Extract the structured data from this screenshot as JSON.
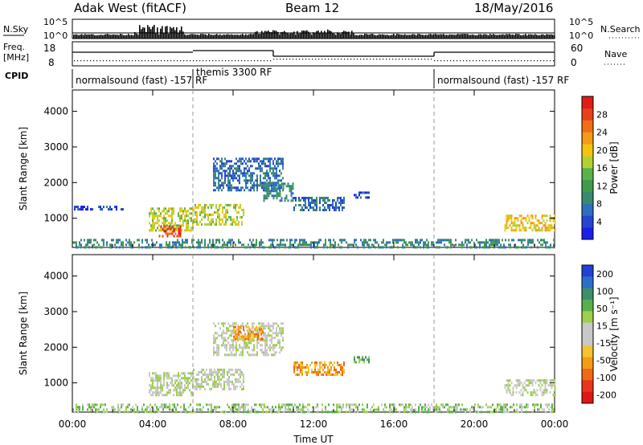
{
  "header": {
    "title": "Adak West (fitACF)",
    "beam": "Beam 12",
    "date": "18/May/2016"
  },
  "top_panels": {
    "nsky_label": "N.Sky",
    "nsky_ticks": [
      "10^5",
      "10^0"
    ],
    "nsearch_label": "N.Search",
    "nsearch_ticks": [
      "10^5",
      "10^0"
    ],
    "freq_label": "Freq.",
    "freq_unit": "[MHz]",
    "freq_ticks": [
      "18",
      "8"
    ],
    "nave_label": "Nave",
    "nave_ticks": [
      "60",
      "0"
    ],
    "cpid_label": "CPID",
    "cpid_segments": [
      {
        "label": "normalsound (fast) -157 RF",
        "start_h": 0,
        "end_h": 6
      },
      {
        "label": "themis 3300 RF",
        "start_h": 6,
        "end_h": 18
      },
      {
        "label": "normalsound (fast) -157 RF",
        "start_h": 18,
        "end_h": 24
      }
    ]
  },
  "axes": {
    "ylabel": "Slant Range [km]",
    "yticks": [
      "1000",
      "2000",
      "3000",
      "4000"
    ],
    "xlabel": "Time UT",
    "xticks": [
      "00:00",
      "04:00",
      "08:00",
      "12:00",
      "16:00",
      "20:00",
      "00:00"
    ]
  },
  "power_scale": {
    "label": "Power [dB]",
    "ticks": [
      "4",
      "8",
      "12",
      "16",
      "20",
      "24",
      "28"
    ],
    "colors": [
      "#1b1ee8",
      "#2546d0",
      "#2e6fc0",
      "#3a8a6f",
      "#3f9b4e",
      "#57b34a",
      "#b4d030",
      "#f2c40f",
      "#f39a16",
      "#ef6e16",
      "#e8401a",
      "#e11c17"
    ]
  },
  "velocity_scale": {
    "label": "Velocity [m s⁻¹]",
    "ticks": [
      "200",
      "100",
      "50",
      "15",
      "-15",
      "-50",
      "-100",
      "-200"
    ],
    "colors": [
      "#2140d8",
      "#2b6ec8",
      "#3c8e6c",
      "#56b04d",
      "#9ccf4c",
      "#c8c8c8",
      "#c8c8c8",
      "#f3c330",
      "#f39a18",
      "#ee6a17",
      "#e8361a",
      "#e11616"
    ]
  },
  "chart_data": [
    {
      "type": "heatmap",
      "title": "",
      "xlabel": "Time UT",
      "ylabel": "Slant Range [km]",
      "xlim": [
        0,
        24
      ],
      "ylim": [
        180,
        4600
      ],
      "colorbar_label": "Power [dB]",
      "scatter_regions": [
        {
          "t_start": 0.0,
          "t_end": 24.0,
          "r_start": 180,
          "r_end": 420,
          "level": 3
        },
        {
          "t_start": 0.0,
          "t_end": 2.5,
          "r_start": 1250,
          "r_end": 1350,
          "level": 1
        },
        {
          "t_start": 3.8,
          "t_end": 6.0,
          "r_start": 650,
          "r_end": 1300,
          "level": 6
        },
        {
          "t_start": 4.3,
          "t_end": 5.4,
          "r_start": 500,
          "r_end": 800,
          "level": 10
        },
        {
          "t_start": 6.0,
          "t_end": 8.5,
          "r_start": 850,
          "r_end": 1400,
          "level": 6
        },
        {
          "t_start": 7.0,
          "t_end": 10.5,
          "r_start": 1800,
          "r_end": 2700,
          "level": 2
        },
        {
          "t_start": 9.5,
          "t_end": 11.0,
          "r_start": 1500,
          "r_end": 2000,
          "level": 3
        },
        {
          "t_start": 11.0,
          "t_end": 13.5,
          "r_start": 1200,
          "r_end": 1600,
          "level": 2
        },
        {
          "t_start": 14.0,
          "t_end": 14.8,
          "r_start": 1600,
          "r_end": 1750,
          "level": 1
        },
        {
          "t_start": 21.5,
          "t_end": 24.0,
          "r_start": 650,
          "r_end": 1100,
          "level": 7
        }
      ]
    },
    {
      "type": "heatmap",
      "title": "",
      "xlabel": "Time UT",
      "ylabel": "Slant Range [km]",
      "xlim": [
        0,
        24
      ],
      "ylim": [
        180,
        4600
      ],
      "colorbar_label": "Velocity [m s⁻¹]",
      "scatter_regions": [
        {
          "t_start": 0.0,
          "t_end": 24.0,
          "r_start": 180,
          "r_end": 420,
          "level": 4
        },
        {
          "t_start": 3.8,
          "t_end": 6.0,
          "r_start": 650,
          "r_end": 1300,
          "level": 5
        },
        {
          "t_start": 6.0,
          "t_end": 8.5,
          "r_start": 850,
          "r_end": 1400,
          "level": 5
        },
        {
          "t_start": 7.0,
          "t_end": 10.5,
          "r_start": 1800,
          "r_end": 2700,
          "level": 5
        },
        {
          "t_start": 8.0,
          "t_end": 9.5,
          "r_start": 2200,
          "r_end": 2600,
          "level": 8
        },
        {
          "t_start": 11.0,
          "t_end": 13.5,
          "r_start": 1200,
          "r_end": 1600,
          "level": 8
        },
        {
          "t_start": 14.0,
          "t_end": 14.8,
          "r_start": 1600,
          "r_end": 1750,
          "level": 3
        },
        {
          "t_start": 21.5,
          "t_end": 24.0,
          "r_start": 650,
          "r_end": 1100,
          "level": 5
        }
      ]
    }
  ]
}
